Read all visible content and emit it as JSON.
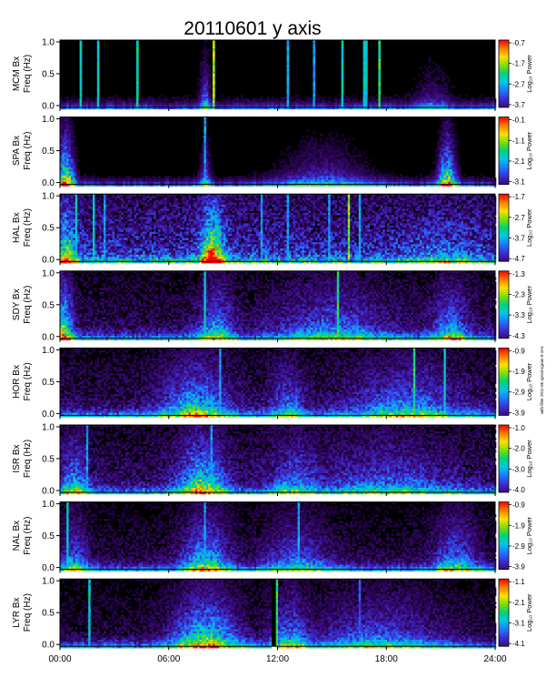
{
  "title": "20110601  y axis",
  "side_note": "with filter 2011-06 spectrogram 0-1Hz",
  "chart_data": {
    "type": "heatmap",
    "title": "20110601  y axis",
    "xlim": [
      0,
      24
    ],
    "x_ticks": [
      {
        "value": 0,
        "label": "00:00"
      },
      {
        "value": 6,
        "label": "06:00"
      },
      {
        "value": 12,
        "label": "12:00"
      },
      {
        "value": 18,
        "label": "18:00"
      },
      {
        "value": 24,
        "label": "24:00"
      }
    ],
    "colorbar_label": "Log₁₀ Power",
    "colormap": [
      "#000000",
      "#1a0030",
      "#3a0a7a",
      "#3b2fd6",
      "#1f78ff",
      "#00c8e6",
      "#00d27a",
      "#7ee000",
      "#ffe000",
      "#ff7a00",
      "#ff0000"
    ],
    "panels": [
      {
        "station": "MCM",
        "ylabel": "MCM Bx",
        "ylabel2": "Freq (Hz)",
        "yticks": [
          "1.0",
          "0.5",
          "0.0"
        ],
        "ylim": [
          0,
          1
        ],
        "cbar_ticks": [
          "-0.7",
          "-1.7",
          "-2.7",
          "-3.7"
        ],
        "floor": 0.08,
        "events": [
          {
            "t": 8.0,
            "w": 0.3,
            "s": 0.45
          },
          {
            "t": 20.5,
            "w": 1.0,
            "s": 0.2
          }
        ],
        "lines": [
          {
            "t": 1.1,
            "s": 0.6
          },
          {
            "t": 2.1,
            "s": 0.6
          },
          {
            "t": 4.3,
            "s": 0.65
          },
          {
            "t": 8.4,
            "s": 0.8
          },
          {
            "t": 12.5,
            "s": 0.55
          },
          {
            "t": 14.0,
            "s": 0.5
          },
          {
            "t": 15.5,
            "s": 0.6
          },
          {
            "t": 16.8,
            "s": 0.6
          },
          {
            "t": 17.6,
            "s": 0.7
          }
        ]
      },
      {
        "station": "SPA",
        "ylabel": "SPA Bx",
        "ylabel2": "Freq (Hz)",
        "yticks": [
          "1.0",
          "0.5",
          "0.0"
        ],
        "ylim": [
          0,
          1
        ],
        "cbar_ticks": [
          "-0.1",
          "-1.1",
          "-2.1",
          "-3.1"
        ],
        "floor": 0.06,
        "events": [
          {
            "t": 0.3,
            "w": 0.5,
            "s": 0.9
          },
          {
            "t": 8.0,
            "w": 0.3,
            "s": 0.4
          },
          {
            "t": 14.5,
            "w": 2.5,
            "s": 0.3
          },
          {
            "t": 21.3,
            "w": 0.5,
            "s": 0.8
          }
        ],
        "lines": [
          {
            "t": 8.0,
            "s": 0.5
          }
        ]
      },
      {
        "station": "HAL",
        "ylabel": "HAL Bx",
        "ylabel2": "Freq (Hz)",
        "yticks": [
          "1.0",
          "0.5",
          "0.0"
        ],
        "ylim": [
          0,
          1
        ],
        "cbar_ticks": [
          "-1.7",
          "-2.7",
          "-3.7",
          "-4.7"
        ],
        "floor": 0.38,
        "events": [
          {
            "t": 0.3,
            "w": 0.6,
            "s": 0.6
          },
          {
            "t": 8.4,
            "w": 0.6,
            "s": 0.95
          },
          {
            "t": 21.0,
            "w": 2.0,
            "s": 0.15
          }
        ],
        "lines": [
          {
            "t": 0.9,
            "s": 0.6
          },
          {
            "t": 1.8,
            "s": 0.6
          },
          {
            "t": 2.5,
            "s": 0.5
          },
          {
            "t": 11.1,
            "s": 0.5
          },
          {
            "t": 12.5,
            "s": 0.5
          },
          {
            "t": 14.8,
            "s": 0.5
          },
          {
            "t": 15.9,
            "s": 0.8
          },
          {
            "t": 16.5,
            "s": 0.5
          }
        ]
      },
      {
        "station": "SDY",
        "ylabel": "SDY Bx",
        "ylabel2": "Freq (Hz)",
        "yticks": [
          "1.0",
          "0.5",
          "0.0"
        ],
        "ylim": [
          0,
          1
        ],
        "cbar_ticks": [
          "-1.3",
          "-2.3",
          "-3.3",
          "-4.3"
        ],
        "floor": 0.22,
        "events": [
          {
            "t": 0.2,
            "w": 0.5,
            "s": 0.8
          },
          {
            "t": 8.6,
            "w": 1.0,
            "s": 0.45
          },
          {
            "t": 15.0,
            "w": 3.0,
            "s": 0.35
          },
          {
            "t": 21.5,
            "w": 1.0,
            "s": 0.45
          }
        ],
        "lines": [
          {
            "t": 8.0,
            "s": 0.6
          },
          {
            "t": 15.3,
            "s": 0.7
          }
        ]
      },
      {
        "station": "HOR",
        "ylabel": "HOR Bx",
        "ylabel2": "Freq (Hz)",
        "yticks": [
          "1.0",
          "0.5",
          "0.0"
        ],
        "ylim": [
          0,
          1
        ],
        "cbar_ticks": [
          "-0.9",
          "-1.9",
          "-2.9",
          "-3.9"
        ],
        "floor": 0.22,
        "events": [
          {
            "t": 7.5,
            "w": 1.8,
            "s": 0.55
          },
          {
            "t": 12.5,
            "w": 1.0,
            "s": 0.35
          },
          {
            "t": 19.0,
            "w": 3.0,
            "s": 0.4
          }
        ],
        "lines": [
          {
            "t": 8.8,
            "s": 0.5
          },
          {
            "t": 19.5,
            "s": 0.7
          },
          {
            "t": 21.2,
            "s": 0.6
          }
        ]
      },
      {
        "station": "ISR",
        "ylabel": "ISR Bx",
        "ylabel2": "Freq (Hz)",
        "yticks": [
          "1.0",
          "0.5",
          "0.0"
        ],
        "ylim": [
          0,
          1
        ],
        "cbar_ticks": [
          "-1.0",
          "-2.0",
          "-3.0",
          "-4.0"
        ],
        "floor": 0.24,
        "events": [
          {
            "t": 0.8,
            "w": 0.8,
            "s": 0.45
          },
          {
            "t": 7.8,
            "w": 1.3,
            "s": 0.65
          },
          {
            "t": 13.0,
            "w": 1.5,
            "s": 0.35
          },
          {
            "t": 18.0,
            "w": 3.5,
            "s": 0.3
          }
        ],
        "lines": [
          {
            "t": 8.3,
            "s": 0.5
          },
          {
            "t": 1.5,
            "s": 0.5
          }
        ]
      },
      {
        "station": "NAL",
        "ylabel": "NAL Bx",
        "ylabel2": "Freq (Hz)",
        "yticks": [
          "1.0",
          "0.5",
          "0.0"
        ],
        "ylim": [
          0,
          1
        ],
        "cbar_ticks": [
          "-0.9",
          "-1.9",
          "-2.9",
          "-3.9"
        ],
        "floor": 0.18,
        "events": [
          {
            "t": 0.8,
            "w": 0.8,
            "s": 0.4
          },
          {
            "t": 8.0,
            "w": 1.3,
            "s": 0.6
          },
          {
            "t": 13.0,
            "w": 1.8,
            "s": 0.35
          },
          {
            "t": 21.8,
            "w": 1.2,
            "s": 0.45
          }
        ],
        "lines": [
          {
            "t": 0.4,
            "s": 0.6
          },
          {
            "t": 8.0,
            "s": 0.5
          },
          {
            "t": 13.1,
            "s": 0.5
          }
        ]
      },
      {
        "station": "LYR",
        "ylabel": "LYR Bx",
        "ylabel2": "Freq (Hz)",
        "yticks": [
          "1.0",
          "0.5",
          "0.0"
        ],
        "ylim": [
          0,
          1
        ],
        "cbar_ticks": [
          "-1.1",
          "-2.1",
          "-3.1",
          "-4.1"
        ],
        "floor": 0.18,
        "events": [
          {
            "t": 8.0,
            "w": 1.8,
            "s": 0.7
          },
          {
            "t": 12.7,
            "w": 1.2,
            "s": 0.45
          },
          {
            "t": 17.5,
            "w": 3.5,
            "s": 0.35
          }
        ],
        "lines": [
          {
            "t": 1.6,
            "s": 0.6
          },
          {
            "t": 11.9,
            "s": 0.7
          },
          {
            "t": 16.5,
            "s": 0.4
          }
        ],
        "dark_bands": [
          {
            "t": 11.75,
            "w": 0.2
          }
        ]
      }
    ]
  }
}
